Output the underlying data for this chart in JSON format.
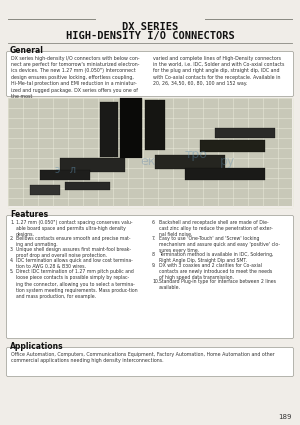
{
  "title_line1": "DX SERIES",
  "title_line2": "HIGH-DENSITY I/O CONNECTORS",
  "background_color": "#f0ede8",
  "general_title": "General",
  "general_text_col1": "DX series high-density I/O connectors with below con-\nnect are perfect for tomorrow's miniaturized electron-\nics devices. The new 1.27 mm (0.050\") Interconnect design\nensures positive locking, effortless coupling, Hi-Me-tal\nprotection and EMI reduction in a miniaturized and rug-\nged package. DX series offers you one of the most",
  "general_text_col2": "varied and complete lines of High-Density connectors\nin the world, i.e. IDC, Solder and with Co-axial contacts\nfor the plug and right angle dip, straight dip, IDC and\nwith Co-axial contacts for the receptacle. Available in\n20, 26, 34,50, 60, 80, 100 and 152 way.",
  "features_title": "Features",
  "feat1_num": "1.",
  "feat1_text": "1.27 mm (0.050\") contact spacing conserves valu-\nable board space and permits ultra-high density\ndesigns.",
  "feat2_num": "2.",
  "feat2_text": "Bellows contacts ensure smooth and precise mat-\ning and unmating.",
  "feat3_num": "3.",
  "feat3_text": "Unique shell design assures first maint-fool break-\nproof drop and overall noise protection.",
  "feat4_num": "4.",
  "feat4_text": "IDC termination allows quick and low cost termina-\ntion to AWG 0.28 & B30 wires.",
  "feat5_num": "5.",
  "feat5_text": "Direct IDC termination of 1.27 mm pitch public and\nloose piece contacts is possible simply by replac-\ning the connector, allowing you to select a termina-\ntion system meeting requirements. Mass produc-tion\nand mass production, for example.",
  "feat6_num": "6.",
  "feat6_text": "Backshell and receptacle shell are made of Die-\ncast zinc alloy to reduce the penetration of exter-\nnal field noise.",
  "feat7_num": "7.",
  "feat7_text": "Easy to use 'One-Touch' and 'Screw' locking\nmechanism and assure quick and easy 'positive' clo-\nsures every time.",
  "feat8_num": "8.",
  "feat8_text": "Termination method is available in IDC, Soldering,\nRight Angle Dip, Straight Dip and SMT.",
  "feat9_num": "9.",
  "feat9_text": "DX with 3 coaxies and 2 clarities for Co-axial\ncontacts are newly introduced to meet the needs\nof high speed data transmission.",
  "feat10_num": "10.",
  "feat10_text": "Standard Plug-in type for interface between 2 lines\navailable.",
  "applications_title": "Applications",
  "applications_text": "Office Automation, Computers, Communications Equipment, Factory Automation, Home Automation and other\ncommercial applications needing high density interconnections.",
  "page_number": "189",
  "line_color": "#888880",
  "box_border_color": "#999990",
  "title_color": "#111111",
  "text_color": "#333333",
  "img_bg": "#c8c8b8",
  "img_w_color": "#e8e8d8",
  "connector_dark": "#1a1a18",
  "connector_mid": "#3a3a38"
}
